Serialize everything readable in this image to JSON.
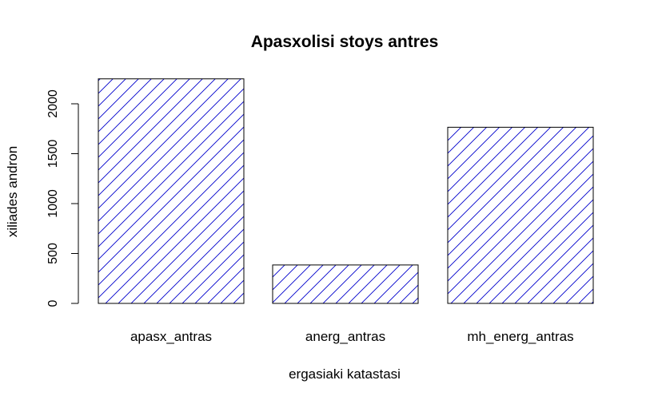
{
  "chart_data": {
    "type": "bar",
    "title": "Apasxolisi stoys antres",
    "xlabel": "ergasiaki katastasi",
    "ylabel": "xiliades andron",
    "categories": [
      "apasx_antras",
      "anerg_antras",
      "mh_energ_antras"
    ],
    "values": [
      2250,
      385,
      1765
    ],
    "ylim": [
      0,
      2250
    ],
    "yticks": [
      "0",
      "500",
      "1000",
      "1500",
      "2000"
    ],
    "grid": false,
    "bar_fill": "hatched",
    "hatch_color": "#0000cc",
    "bar_border_color": "#000000"
  }
}
